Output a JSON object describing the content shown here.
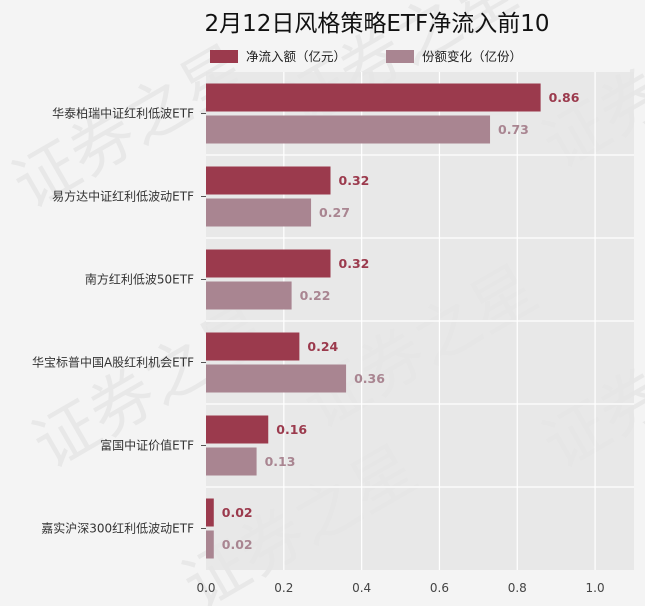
{
  "chart_data": {
    "type": "bar",
    "orientation": "horizontal",
    "title": "2月12日风格策略ETF净流入前10",
    "categories": [
      "华泰柏瑞中证红利低波ETF",
      "易方达中证红利低波动ETF",
      "南方红利低波50ETF",
      "华宝标普中国A股红利机会ETF",
      "富国中证价值ETF",
      "嘉实沪深300红利低波动ETF"
    ],
    "series": [
      {
        "name": "净流入额（亿元）",
        "color": "#9b3a4d",
        "values": [
          0.86,
          0.32,
          0.32,
          0.24,
          0.16,
          0.02
        ],
        "labels": [
          "0.86",
          "0.32",
          "0.32",
          "0.24",
          "0.16",
          "0.02"
        ]
      },
      {
        "name": "份额变化（亿份）",
        "color": "#a98591",
        "values": [
          0.73,
          0.27,
          0.22,
          0.36,
          0.13,
          0.02
        ],
        "labels": [
          "0.73",
          "0.27",
          "0.22",
          "0.36",
          "0.13",
          "0.02"
        ]
      }
    ],
    "xlim": [
      0,
      1.1
    ],
    "xticks": [
      0,
      0.2,
      0.4,
      0.6,
      0.8,
      1.0
    ],
    "xtick_labels": [
      "0.0",
      "0.2",
      "0.4",
      "0.6",
      "0.8",
      "1.0"
    ],
    "grid": true,
    "legend_position": "top",
    "plot_background": "#e5e5e5",
    "page_background": "#f4f4f4",
    "watermark": "证券之星"
  }
}
